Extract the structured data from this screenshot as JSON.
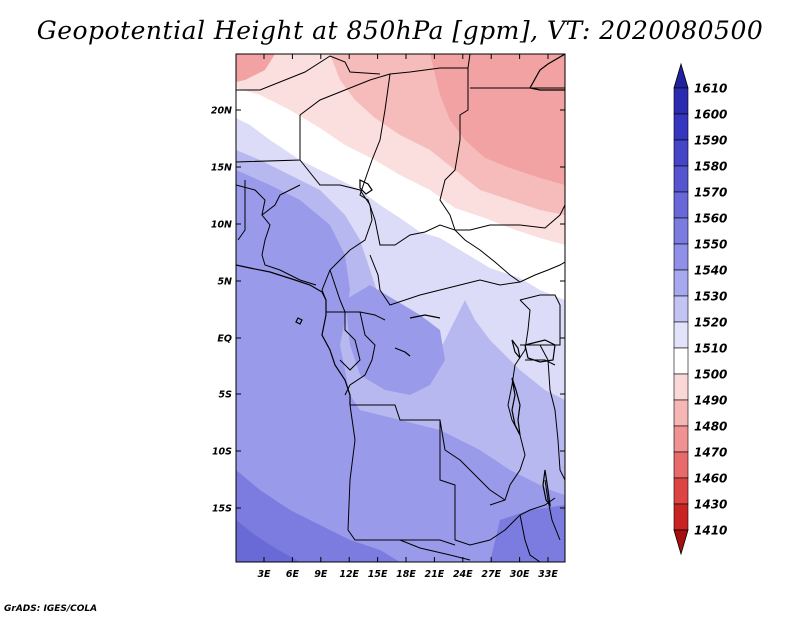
{
  "title": "Geopotential Height at 850hPa [gpm], VT: 2020080500",
  "credit": "GrADS: IGES/COLA",
  "map": {
    "lat_ticks": [
      "20N",
      "15N",
      "10N",
      "5N",
      "EQ",
      "5S",
      "10S",
      "15S"
    ],
    "lon_ticks": [
      "3E",
      "6E",
      "9E",
      "12E",
      "15E",
      "18E",
      "21E",
      "24E",
      "27E",
      "30E",
      "33E"
    ]
  },
  "colorbar": {
    "levels": [
      "1610",
      "1600",
      "1590",
      "1580",
      "1570",
      "1560",
      "1550",
      "1540",
      "1530",
      "1520",
      "1510",
      "1500",
      "1490",
      "1480",
      "1470",
      "1460",
      "1430",
      "1410"
    ],
    "colors": [
      "#2020a0",
      "#2b2bb0",
      "#3535c0",
      "#4545c8",
      "#5555d0",
      "#6868d8",
      "#7b7be0",
      "#9090e8",
      "#a8a8ee",
      "#c4c4f4",
      "#e2e2fa",
      "#ffffff",
      "#fbd8d8",
      "#f6b6b6",
      "#f09292",
      "#e86a6a",
      "#dd4444",
      "#c82424",
      "#a80e0e"
    ]
  },
  "field_colors": {
    "deep_blue": "#6a6ad6",
    "mid_blue": "#9a9aea",
    "light_blue": "#b8b8f0",
    "pale_blue": "#dcdcf8",
    "white": "#ffffff",
    "pale_red": "#fbdede",
    "light_red": "#f6bcbc",
    "mid_red": "#f2a2a2"
  }
}
